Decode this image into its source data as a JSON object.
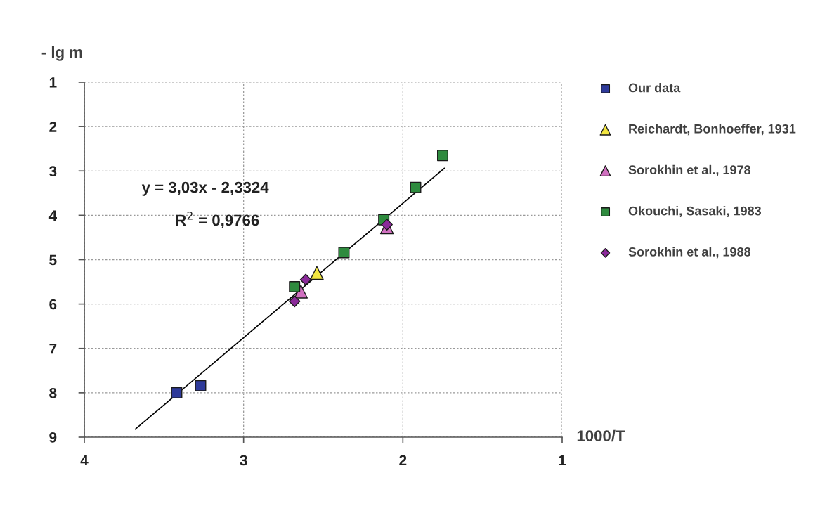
{
  "chart_data": {
    "type": "scatter",
    "ylabel": "- lg m",
    "xlabel": "1000/T",
    "xlim": [
      4,
      1
    ],
    "xticks": [
      4,
      3,
      2,
      1
    ],
    "ylim": [
      9,
      1
    ],
    "yticks": [
      1,
      2,
      3,
      4,
      5,
      6,
      7,
      8,
      9
    ],
    "grid": true,
    "legend": "right",
    "annotations": [
      "y = 3,03x - 2,3324",
      "R$^{2}$ = 0,9766"
    ],
    "series": [
      {
        "name": "Our data",
        "color": "#2e3a9a",
        "marker": "square",
        "x": [
          3.42,
          3.27
        ],
        "values": [
          8.0,
          7.84
        ]
      },
      {
        "name": "Reichardt, Bonhoeffer, 1931",
        "color": "#f2e640",
        "marker": "triangle",
        "x": [
          2.54
        ],
        "values": [
          5.3
        ]
      },
      {
        "name": "Sorokhin et al., 1978",
        "color": "#d070c0",
        "marker": "triangle",
        "x": [
          2.64,
          2.1
        ],
        "values": [
          5.72,
          4.27
        ]
      },
      {
        "name": "Okouchi, Sasaki, 1983",
        "color": "#2e8b3e",
        "marker": "square",
        "x": [
          2.68,
          2.37,
          2.12,
          1.92,
          1.75
        ],
        "values": [
          5.61,
          4.84,
          4.1,
          3.37,
          2.65
        ]
      },
      {
        "name": "Sorokhin et al., 1988",
        "color": "#8b2a9a",
        "marker": "diamond",
        "x": [
          2.68,
          2.61,
          2.1
        ],
        "values": [
          5.94,
          5.45,
          4.21
        ]
      },
      {
        "type": "line",
        "color": "#000000",
        "marker": "none",
        "x": [
          3.68,
          1.74
        ],
        "values": [
          8.82,
          2.94
        ]
      }
    ]
  }
}
